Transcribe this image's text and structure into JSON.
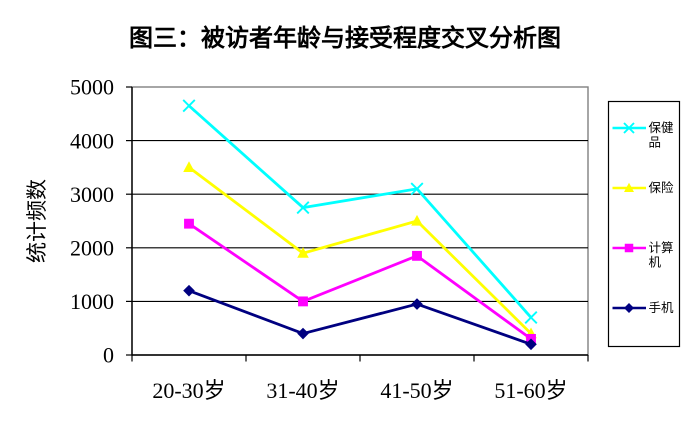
{
  "title": "图三：被访者年龄与接受程度交叉分析图",
  "colors": {
    "background": "#FFFFFF",
    "plot_border": "#808080",
    "gridline": "#000000",
    "axis": "#000000",
    "text": "#000000",
    "legend_border": "#000000",
    "legend_fill": "#FFFFFF"
  },
  "chart_data": {
    "type": "line",
    "title": "图三：被访者年龄与接受程度交叉分析图",
    "ylabel": "统计频数",
    "xlabel": "",
    "categories": [
      "20-30岁",
      "31-40岁",
      "41-50岁",
      "51-60岁"
    ],
    "series": [
      {
        "name": "保健品",
        "color": "#00FFFF",
        "marker": "x",
        "values": [
          4650,
          2750,
          3100,
          700
        ]
      },
      {
        "name": "保险",
        "color": "#FFFF00",
        "marker": "triangle",
        "values": [
          3500,
          1900,
          2500,
          400
        ]
      },
      {
        "name": "计算机",
        "color": "#FF00FF",
        "marker": "square",
        "values": [
          2450,
          1000,
          1850,
          300
        ]
      },
      {
        "name": "手机",
        "color": "#000080",
        "marker": "diamond",
        "values": [
          1200,
          400,
          950,
          200
        ]
      }
    ],
    "ylim": [
      0,
      5000
    ],
    "y_ticks": [
      0,
      1000,
      2000,
      3000,
      4000,
      5000
    ],
    "grid": true,
    "legend_position": "right"
  }
}
